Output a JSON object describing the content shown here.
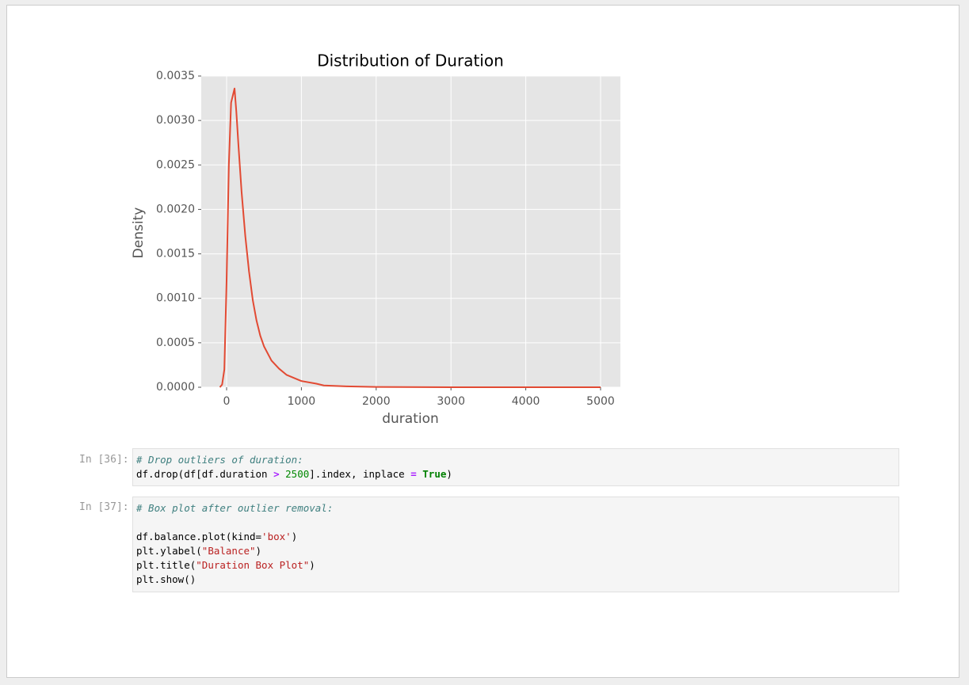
{
  "chart_data": {
    "type": "line",
    "title": "Distribution of Duration",
    "xlabel": "duration",
    "ylabel": "Density",
    "x": [
      -90,
      -60,
      -30,
      0,
      30,
      60,
      106,
      130,
      160,
      200,
      250,
      300,
      350,
      400,
      450,
      500,
      600,
      700,
      800,
      1000,
      1200,
      1300,
      1600,
      2000,
      3000,
      4000,
      5000
    ],
    "series": [
      {
        "name": "duration",
        "color": "#e24a33",
        "values": [
          0,
          3e-05,
          0.0002,
          0.0012,
          0.0025,
          0.0032,
          0.00336,
          0.0031,
          0.0027,
          0.0022,
          0.0017,
          0.0013,
          0.00098,
          0.00075,
          0.00058,
          0.00046,
          0.0003,
          0.00021,
          0.00014,
          7e-05,
          4e-05,
          2e-05,
          1e-05,
          3e-06,
          0,
          0,
          0
        ]
      }
    ],
    "xlim": [
      -339,
      5265
    ],
    "ylim": [
      0,
      0.0035
    ],
    "xticks": [
      0,
      1000,
      2000,
      3000,
      4000,
      5000
    ],
    "yticks": [
      {
        "value": 0,
        "label": "0.0000"
      },
      {
        "value": 0.0005,
        "label": "0.0005"
      },
      {
        "value": 0.001,
        "label": "0.0010"
      },
      {
        "value": 0.0015,
        "label": "0.0015"
      },
      {
        "value": 0.002,
        "label": "0.0020"
      },
      {
        "value": 0.0025,
        "label": "0.0025"
      },
      {
        "value": 0.003,
        "label": "0.0030"
      },
      {
        "value": 0.0035,
        "label": "0.0035"
      }
    ],
    "grid": true
  },
  "cells": [
    {
      "prompt": "In [36]:",
      "lines": [
        [
          "# Drop outliers of duration:"
        ],
        [
          "df.drop(df[df.duration ",
          "> ",
          "2500",
          "].index, inplace ",
          "= ",
          "True",
          ")"
        ]
      ]
    },
    {
      "prompt": "In [37]:",
      "lines": [
        [
          "# Box plot after outlier removal:"
        ],
        [
          "df.balance.plot(kind=",
          "'box'",
          ")"
        ],
        [
          "plt.ylabel(",
          "\"Balance\"",
          ")"
        ],
        [
          "plt.title(",
          "\"Duration Box Plot\"",
          ")"
        ],
        [
          "plt.show()"
        ]
      ]
    }
  ]
}
